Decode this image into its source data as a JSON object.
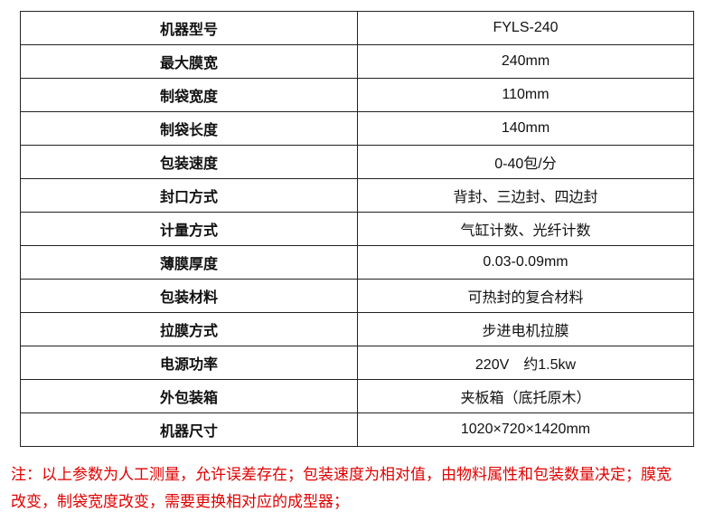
{
  "table": {
    "rows": [
      [
        "机器型号",
        "FYLS-240"
      ],
      [
        "最大膜宽",
        "240mm"
      ],
      [
        "制袋宽度",
        "110mm"
      ],
      [
        "制袋长度",
        "140mm"
      ],
      [
        "包装速度",
        "0-40包/分"
      ],
      [
        "封口方式",
        "背封、三边封、四边封"
      ],
      [
        "计量方式",
        "气缸计数、光纤计数"
      ],
      [
        "薄膜厚度",
        "0.03-0.09mm"
      ],
      [
        "包装材料",
        "可热封的复合材料"
      ],
      [
        "拉膜方式",
        "步进电机拉膜"
      ],
      [
        "电源功率",
        "220V　约1.5kw"
      ],
      [
        "外包装箱",
        "夹板箱（底托原木）"
      ],
      [
        "机器尺寸",
        "1020×720×1420mm"
      ]
    ]
  },
  "note": {
    "lines": [
      "注：以上参数为人工测量，允许误差存在；包装速度为相对值，由物料属性和包装数量决定；膜宽",
      "改变，制袋宽度改变，需要更换相对应的成型器；"
    ]
  }
}
